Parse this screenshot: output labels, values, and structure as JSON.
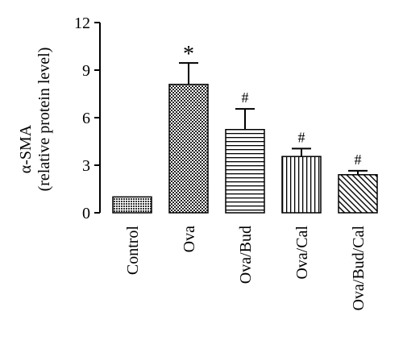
{
  "chart_data": {
    "type": "bar",
    "categories": [
      "Control",
      "Ova",
      "Ova/Bud",
      "Ova/Cal",
      "Ova/Bud/Cal"
    ],
    "values": [
      1.0,
      8.1,
      5.25,
      3.55,
      2.4
    ],
    "errors": [
      0,
      1.35,
      1.3,
      0.5,
      0.25
    ],
    "annotations": [
      "",
      "*",
      "#",
      "#",
      "#"
    ],
    "patterns": [
      "crosshatch-dense",
      "checker",
      "horizontal-lines",
      "vertical-lines",
      "diagonal-lines"
    ],
    "ylabel_line1": "α-SMA",
    "ylabel_line2": "(relative protein level)",
    "xlabel": "",
    "ylim": [
      0,
      12
    ],
    "yticks": [
      0,
      3,
      6,
      9,
      12
    ],
    "grid": false,
    "bar_color": "#000000"
  }
}
